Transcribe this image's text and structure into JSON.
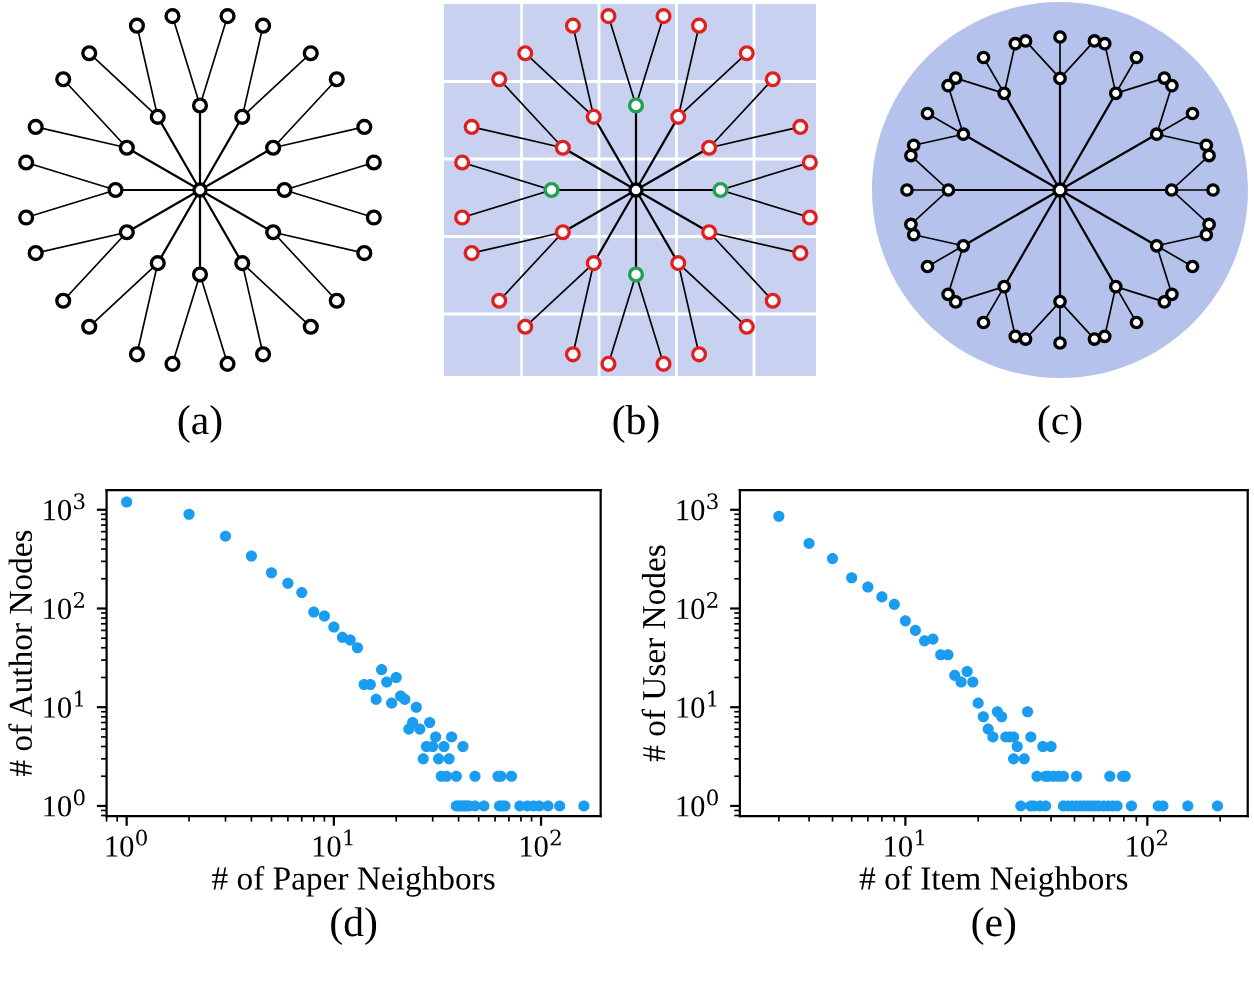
{
  "chart_data": [
    {
      "type": "other",
      "annotations": [
        "(a)",
        "(b)",
        "(c)"
      ]
    },
    {
      "type": "scatter",
      "xlabel": "# of Paper Neighbors",
      "ylabel": "# of Author Nodes",
      "log": "xy",
      "marker": "circle",
      "color": "#1a9cf0",
      "x": [
        1,
        2,
        3,
        4,
        5,
        6,
        7,
        8,
        9,
        10,
        11,
        12,
        13,
        14,
        15,
        16,
        17,
        18,
        19,
        20,
        21,
        22,
        23,
        24,
        25,
        26,
        27,
        28,
        29,
        30,
        31,
        32,
        33,
        34,
        35,
        36,
        37,
        39,
        39,
        40,
        41,
        42,
        42,
        43,
        44,
        45,
        48,
        48,
        53,
        62,
        63,
        64,
        65,
        67,
        72,
        79,
        86,
        92,
        98,
        108,
        123,
        161
      ],
      "values": [
        1200,
        900,
        540,
        340,
        230,
        180,
        145,
        92,
        84,
        65,
        51,
        48,
        40,
        17,
        17,
        12,
        24,
        18,
        11,
        20,
        13,
        12,
        6,
        7,
        10,
        6,
        3,
        4,
        7,
        4,
        5,
        3,
        2,
        4,
        2,
        3,
        5,
        2,
        1,
        1,
        1,
        1,
        4,
        1,
        1,
        1,
        1,
        2,
        1,
        2,
        1,
        2,
        1,
        1,
        2,
        1,
        1,
        1,
        1,
        1,
        1,
        1
      ],
      "xlim": [
        0.8,
        194
      ],
      "ylim": [
        0.79,
        1585
      ],
      "xticks": [
        {
          "value": 1,
          "label": "10$^{0}$"
        },
        {
          "value": 10,
          "label": "10$^{1}$"
        },
        {
          "value": 100,
          "label": "10$^{2}$"
        }
      ],
      "yticks": [
        {
          "value": 1,
          "label": "10$^{0}$"
        },
        {
          "value": 10,
          "label": "10$^{1}$"
        },
        {
          "value": 100,
          "label": "10$^{2}$"
        },
        {
          "value": 1000,
          "label": "10$^{3}$"
        }
      ],
      "annotations": [
        "(d)"
      ]
    },
    {
      "type": "scatter",
      "xlabel": "# of Item Neighbors",
      "ylabel": "# of User Nodes",
      "log": "xy",
      "marker": "circle",
      "color": "#1a9cf0",
      "x": [
        3,
        4,
        5,
        6,
        7,
        8,
        9,
        10,
        11,
        12,
        13,
        14,
        15,
        16,
        17,
        18,
        19,
        20,
        21,
        22,
        23,
        24,
        25,
        26,
        27,
        28,
        28,
        29,
        30,
        31,
        32,
        33,
        33,
        34,
        35,
        36,
        37,
        38,
        38,
        39,
        40,
        41,
        43,
        45,
        45,
        47,
        49,
        51,
        51,
        53,
        55,
        57,
        59,
        61,
        63,
        66,
        69,
        70,
        72,
        75,
        79,
        81,
        86,
        111,
        116,
        147,
        195
      ],
      "values": [
        860,
        456,
        320,
        205,
        165,
        131,
        110,
        75,
        60,
        47,
        49,
        34,
        34,
        21,
        18,
        23,
        18,
        11,
        8,
        6,
        5,
        9,
        8,
        5,
        5,
        5,
        3,
        4,
        1,
        3,
        9,
        5,
        1,
        1,
        2,
        1,
        4,
        2,
        1,
        2,
        4,
        2,
        2,
        2,
        1,
        1,
        1,
        1,
        2,
        1,
        1,
        1,
        1,
        1,
        1,
        1,
        1,
        2,
        1,
        1,
        2,
        2,
        1,
        1,
        1,
        1,
        1
      ],
      "xlim": [
        2.07,
        260
      ],
      "ylim": [
        0.79,
        1585
      ],
      "xticks": [
        {
          "value": 10,
          "label": "10$^{1}$"
        },
        {
          "value": 100,
          "label": "10$^{2}$"
        }
      ],
      "yticks": [
        {
          "value": 1,
          "label": "10$^{0}$"
        },
        {
          "value": 10,
          "label": "10$^{1}$"
        },
        {
          "value": 100,
          "label": "10$^{2}$"
        },
        {
          "value": 1000,
          "label": "10$^{3}$"
        }
      ],
      "annotations": [
        "(e)"
      ]
    }
  ]
}
